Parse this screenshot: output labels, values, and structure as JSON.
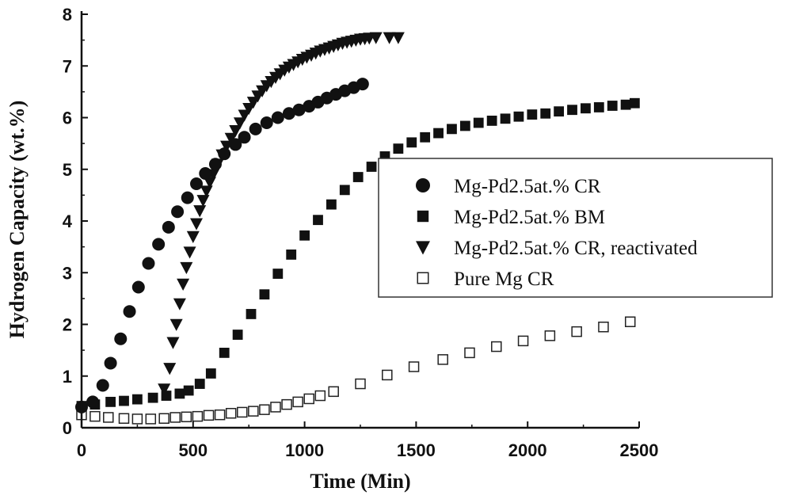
{
  "chart_data": {
    "type": "scatter",
    "title": "",
    "xlabel": "Time (Min)",
    "ylabel": "Hydrogen Capacity (wt.%)",
    "xlim": [
      0,
      2500
    ],
    "ylim": [
      0,
      8
    ],
    "xticks": [
      0,
      500,
      1000,
      1500,
      2000,
      2500
    ],
    "yticks": [
      0,
      1,
      2,
      3,
      4,
      5,
      6,
      7,
      8
    ],
    "grid": false,
    "legend_position": "center-right",
    "series": [
      {
        "name": "Mg-Pd2.5at.% CR",
        "marker": "circle-filled",
        "x": [
          0,
          50,
          95,
          130,
          175,
          215,
          255,
          300,
          345,
          390,
          430,
          475,
          515,
          555,
          600,
          640,
          690,
          730,
          780,
          830,
          880,
          930,
          975,
          1020,
          1060,
          1100,
          1140,
          1180,
          1220,
          1260
        ],
        "y": [
          0.4,
          0.5,
          0.82,
          1.25,
          1.72,
          2.25,
          2.72,
          3.18,
          3.55,
          3.88,
          4.18,
          4.45,
          4.72,
          4.92,
          5.1,
          5.3,
          5.48,
          5.62,
          5.78,
          5.9,
          6.0,
          6.08,
          6.15,
          6.22,
          6.3,
          6.38,
          6.45,
          6.52,
          6.58,
          6.65
        ]
      },
      {
        "name": "Mg-Pd2.5at.% BM",
        "marker": "square-filled",
        "x": [
          0,
          60,
          130,
          190,
          250,
          320,
          380,
          440,
          480,
          530,
          580,
          640,
          700,
          760,
          820,
          880,
          940,
          1000,
          1060,
          1120,
          1180,
          1240,
          1300,
          1360,
          1420,
          1480,
          1540,
          1600,
          1660,
          1720,
          1780,
          1840,
          1900,
          1960,
          2020,
          2080,
          2140,
          2200,
          2260,
          2320,
          2380,
          2440,
          2480
        ],
        "y": [
          0.42,
          0.45,
          0.5,
          0.52,
          0.55,
          0.58,
          0.62,
          0.66,
          0.72,
          0.85,
          1.05,
          1.45,
          1.8,
          2.2,
          2.58,
          2.98,
          3.35,
          3.72,
          4.02,
          4.32,
          4.6,
          4.85,
          5.05,
          5.25,
          5.4,
          5.52,
          5.62,
          5.7,
          5.78,
          5.84,
          5.9,
          5.94,
          5.98,
          6.02,
          6.06,
          6.08,
          6.12,
          6.15,
          6.18,
          6.2,
          6.23,
          6.25,
          6.28
        ]
      },
      {
        "name": "Mg-Pd2.5at.% CR, reactivated",
        "marker": "triangle-down-filled",
        "x": [
          370,
          395,
          410,
          425,
          440,
          455,
          470,
          485,
          500,
          515,
          530,
          545,
          560,
          575,
          590,
          610,
          630,
          650,
          670,
          690,
          710,
          730,
          750,
          770,
          790,
          810,
          830,
          850,
          870,
          890,
          910,
          930,
          950,
          970,
          990,
          1010,
          1030,
          1050,
          1070,
          1090,
          1110,
          1130,
          1150,
          1170,
          1190,
          1210,
          1230,
          1250,
          1270,
          1290,
          1320,
          1380,
          1420
        ],
        "y": [
          0.75,
          1.15,
          1.65,
          2.0,
          2.4,
          2.78,
          3.1,
          3.4,
          3.7,
          3.95,
          4.2,
          4.4,
          4.58,
          4.75,
          4.9,
          5.1,
          5.28,
          5.45,
          5.6,
          5.75,
          5.9,
          6.05,
          6.18,
          6.3,
          6.42,
          6.52,
          6.62,
          6.7,
          6.78,
          6.85,
          6.92,
          6.98,
          7.03,
          7.08,
          7.13,
          7.17,
          7.21,
          7.25,
          7.29,
          7.32,
          7.35,
          7.38,
          7.41,
          7.44,
          7.46,
          7.48,
          7.5,
          7.52,
          7.53,
          7.54,
          7.55,
          7.55,
          7.55
        ]
      },
      {
        "name": "Pure Mg CR",
        "marker": "square-open",
        "x": [
          0,
          60,
          120,
          190,
          250,
          310,
          370,
          420,
          470,
          520,
          570,
          620,
          670,
          720,
          770,
          820,
          870,
          920,
          970,
          1020,
          1070,
          1130,
          1250,
          1370,
          1490,
          1620,
          1740,
          1860,
          1980,
          2100,
          2220,
          2340,
          2460
        ],
        "y": [
          0.25,
          0.22,
          0.2,
          0.18,
          0.17,
          0.17,
          0.18,
          0.2,
          0.21,
          0.22,
          0.24,
          0.25,
          0.28,
          0.3,
          0.32,
          0.35,
          0.4,
          0.45,
          0.5,
          0.56,
          0.62,
          0.7,
          0.85,
          1.02,
          1.18,
          1.32,
          1.45,
          1.57,
          1.68,
          1.78,
          1.86,
          1.95,
          2.05
        ]
      }
    ]
  }
}
